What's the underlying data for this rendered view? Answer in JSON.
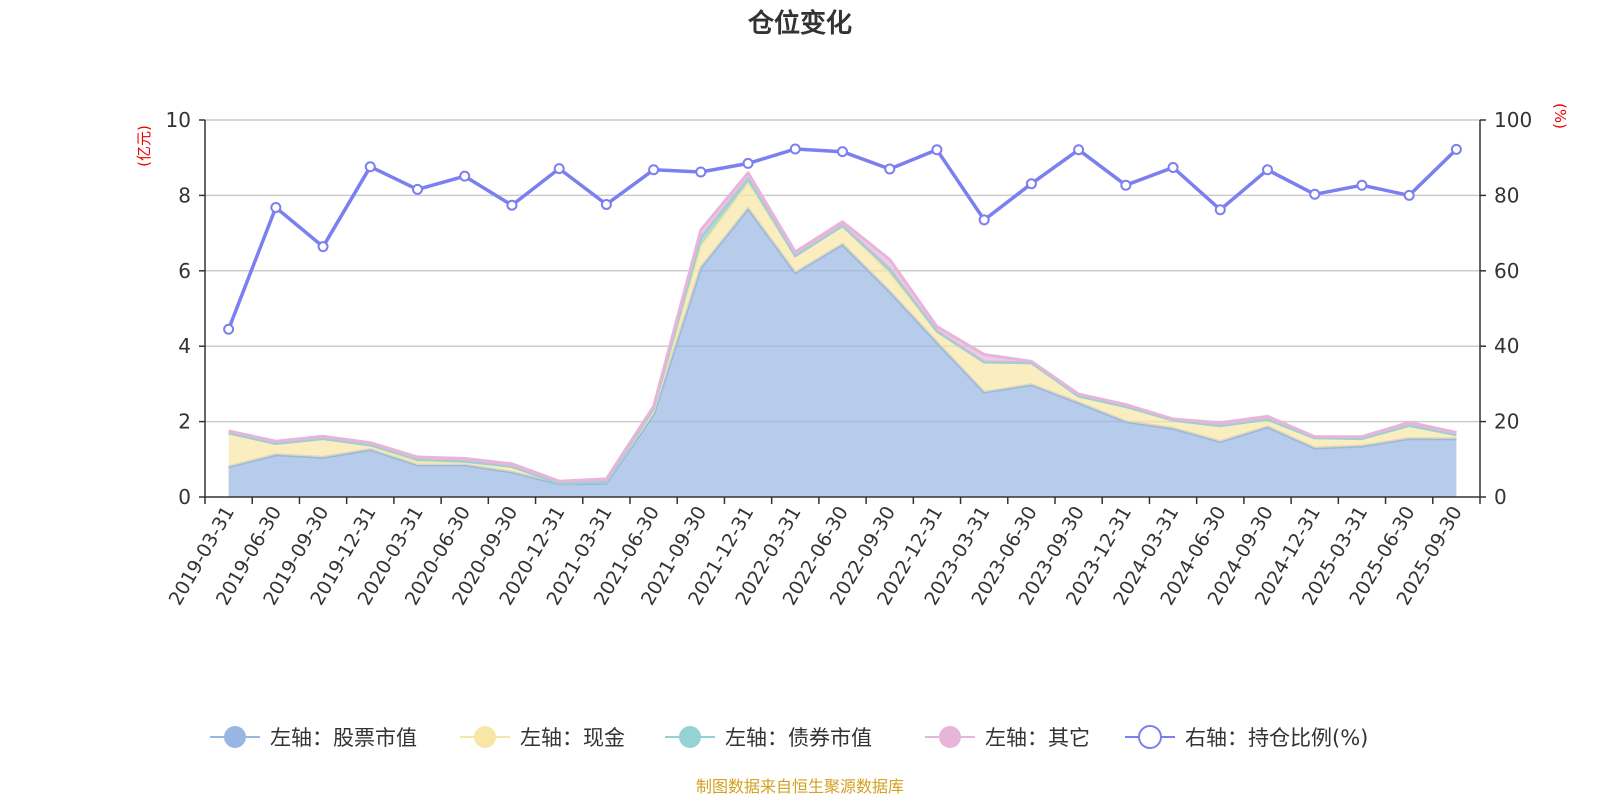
{
  "chart_data": {
    "type": "area",
    "title": "仓位变化",
    "left_unit": "(亿元)",
    "right_unit": "(%)",
    "left_ylim": [
      0,
      10
    ],
    "right_ylim": [
      0,
      100
    ],
    "left_ticks": [
      "0",
      "2",
      "4",
      "6",
      "8",
      "10"
    ],
    "right_ticks": [
      "0",
      "20",
      "40",
      "60",
      "80",
      "100"
    ],
    "grid": true,
    "legend_position": "bottom",
    "categories": [
      "2019-03-31",
      "2019-06-30",
      "2019-09-30",
      "2019-12-31",
      "2020-03-31",
      "2020-06-30",
      "2020-09-30",
      "2020-12-31",
      "2021-03-31",
      "2021-06-30",
      "2021-09-30",
      "2021-12-31",
      "2022-03-31",
      "2022-06-30",
      "2022-09-30",
      "2022-12-31",
      "2023-03-31",
      "2023-06-30",
      "2023-09-30",
      "2023-12-31",
      "2024-03-31",
      "2024-06-30",
      "2024-09-30",
      "2024-12-31",
      "2025-03-31",
      "2025-06-30",
      "2025-09-30"
    ],
    "series": [
      {
        "name": "左轴：股票市值",
        "axis": "left",
        "color": "#99b6e2",
        "values": [
          0.8,
          1.12,
          1.05,
          1.26,
          0.85,
          0.85,
          0.66,
          0.35,
          0.36,
          2.2,
          6.08,
          7.65,
          5.95,
          6.7,
          5.45,
          4.1,
          2.78,
          2.98,
          2.5,
          2.0,
          1.82,
          1.47,
          1.86,
          1.3,
          1.35,
          1.55,
          1.54
        ]
      },
      {
        "name": "左轴：现金",
        "axis": "left",
        "color": "#f8e6a4",
        "values": [
          0.9,
          0.3,
          0.5,
          0.12,
          0.1,
          0.1,
          0.15,
          0.02,
          0.05,
          0.1,
          0.6,
          0.7,
          0.45,
          0.5,
          0.5,
          0.3,
          0.8,
          0.58,
          0.18,
          0.4,
          0.22,
          0.42,
          0.2,
          0.27,
          0.2,
          0.35,
          0.11
        ]
      },
      {
        "name": "左轴：债券市值",
        "axis": "left",
        "color": "#93d3d3",
        "values": [
          0.0,
          0.0,
          0.0,
          0.0,
          0.05,
          0.0,
          0.0,
          0.0,
          0.0,
          0.05,
          0.2,
          0.1,
          0.0,
          0.0,
          0.1,
          0.0,
          0.0,
          0.0,
          0.0,
          0.0,
          0.0,
          0.0,
          0.0,
          0.0,
          0.0,
          0.0,
          0.0
        ]
      },
      {
        "name": "左轴：其它",
        "axis": "left",
        "color": "#e7b5da",
        "values": [
          0.05,
          0.06,
          0.06,
          0.06,
          0.06,
          0.07,
          0.07,
          0.05,
          0.07,
          0.05,
          0.2,
          0.15,
          0.1,
          0.1,
          0.25,
          0.12,
          0.2,
          0.04,
          0.05,
          0.05,
          0.03,
          0.08,
          0.08,
          0.03,
          0.05,
          0.08,
          0.06
        ]
      },
      {
        "name": "右轴：持仓比例(%)",
        "axis": "right",
        "color": "#7b7fef",
        "values": [
          44.5,
          76.8,
          66.4,
          87.6,
          81.6,
          85.1,
          77.4,
          87.1,
          77.6,
          86.8,
          86.2,
          88.5,
          92.3,
          91.6,
          87.0,
          92.1,
          73.5,
          83.1,
          92.1,
          82.7,
          87.4,
          76.2,
          86.8,
          80.3,
          82.7,
          80.0,
          92.2
        ]
      }
    ]
  },
  "source_note": "制图数据来自恒生聚源数据库",
  "colors": {
    "grid": "#cccccc",
    "axis": "#333333",
    "unit_label": "#ee0000",
    "source_note": "#d4a020"
  }
}
